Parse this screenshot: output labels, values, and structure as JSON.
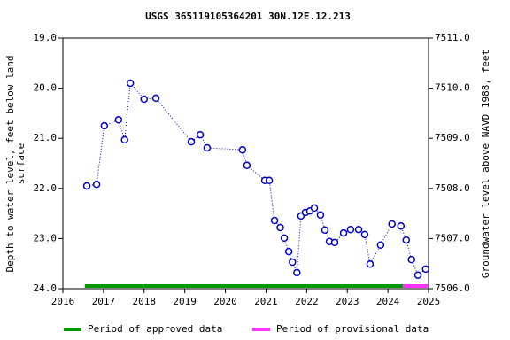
{
  "chart_data": {
    "type": "line",
    "title": "USGS 365119105364201 30N.12E.12.213",
    "ylabel": [
      "Depth to water level, feet below land",
      "surface"
    ],
    "y2label": "Groundwater level above NAVD 1988, feet",
    "x": [
      2016.59,
      2016.83,
      2017.02,
      2017.37,
      2017.52,
      2017.66,
      2018.0,
      2018.29,
      2019.16,
      2019.38,
      2019.55,
      2020.42,
      2020.53,
      2020.97,
      2021.08,
      2021.21,
      2021.35,
      2021.45,
      2021.56,
      2021.65,
      2021.76,
      2021.86,
      2021.97,
      2022.08,
      2022.19,
      2022.34,
      2022.45,
      2022.56,
      2022.69,
      2022.91,
      2023.08,
      2023.28,
      2023.43,
      2023.56,
      2023.82,
      2024.1,
      2024.32,
      2024.45,
      2024.58,
      2024.74,
      2024.93
    ],
    "values": [
      21.95,
      21.92,
      20.75,
      20.63,
      21.03,
      19.9,
      20.22,
      20.2,
      21.07,
      20.93,
      21.19,
      21.23,
      21.54,
      21.84,
      21.84,
      22.64,
      22.78,
      22.99,
      23.26,
      23.47,
      23.68,
      22.55,
      22.48,
      22.45,
      22.39,
      22.53,
      22.83,
      23.06,
      23.08,
      22.89,
      22.82,
      22.82,
      22.92,
      23.51,
      23.13,
      22.71,
      22.75,
      23.03,
      23.42,
      23.73,
      23.61
    ],
    "color": "#0000cc",
    "xlim": [
      2016,
      2025
    ],
    "xticks": [
      2016,
      2017,
      2018,
      2019,
      2020,
      2021,
      2022,
      2023,
      2024,
      2025
    ],
    "ylim": [
      19,
      24
    ],
    "yticks": [
      {
        "value": 19,
        "label": "19.0"
      },
      {
        "value": 20,
        "label": "20.0"
      },
      {
        "value": 21,
        "label": "21.0"
      },
      {
        "value": 22,
        "label": "22.0"
      },
      {
        "value": 23,
        "label": "23.0"
      },
      {
        "value": 24,
        "label": "24.0"
      }
    ],
    "y2lim": [
      7511,
      7506
    ],
    "y2ticks": [
      {
        "value": 7511,
        "label": "7511.0"
      },
      {
        "value": 7510,
        "label": "7510.0"
      },
      {
        "value": 7509,
        "label": "7509.0"
      },
      {
        "value": 7508,
        "label": "7508.0"
      },
      {
        "value": 7507,
        "label": "7507.0"
      },
      {
        "value": 7506,
        "label": "7506.0"
      }
    ],
    "periods": [
      {
        "name": "Period of approved data",
        "color": "#009900",
        "start": 2016.54,
        "end": 2024.37
      },
      {
        "name": "Period of provisional data",
        "color": "#ff33ff",
        "start": 2024.37,
        "end": 2024.98
      }
    ]
  }
}
